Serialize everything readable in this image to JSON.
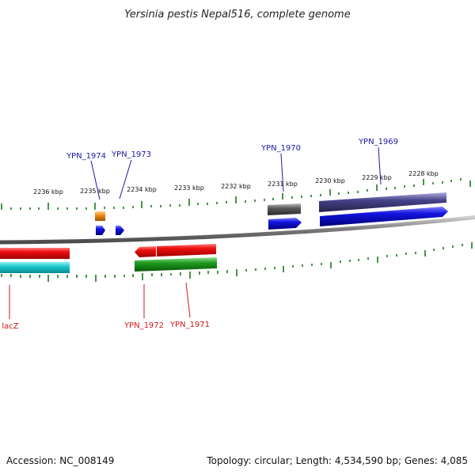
{
  "title": "Yersinia pestis Nepal516, complete genome",
  "footer": {
    "accession": "Accession: NC_008149",
    "topology": "Topology: circular; Length: 4,534,590 bp; Genes: 4,085"
  },
  "scale_ticks": [
    "2236 kbp",
    "2235 kbp",
    "2234 kbp",
    "2233 kbp",
    "2232 kbp",
    "2231 kbp",
    "2230 kbp",
    "2229 kbp",
    "2228 kbp"
  ],
  "gene_labels": {
    "top": [
      "YPN_1974",
      "YPN_1973",
      "YPN_1970",
      "YPN_1969"
    ],
    "bottom": [
      "lacZ",
      "YPN_1972",
      "YPN_1971"
    ]
  },
  "colors": {
    "top_label": "#1a1aa6",
    "bottom_label": "#cc1a1a",
    "tick": "#1a7a1a",
    "backbone": "#8a8a8a",
    "blue_gene": "#1414e0",
    "red_gene": "#e01414",
    "green_gene": "#1e9a1e",
    "cyan_gene": "#1ec8cc",
    "orange_gene": "#f08c14",
    "gray_gene": "#5a5a5a",
    "purple_gene": "#46428a"
  }
}
